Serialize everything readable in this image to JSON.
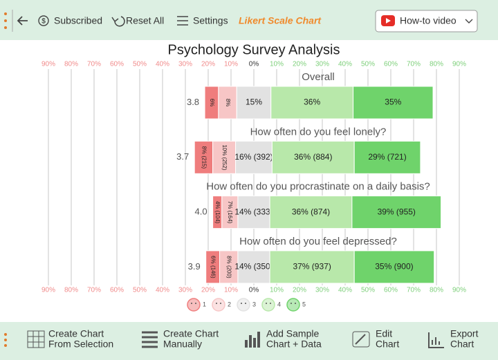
{
  "toolbar": {
    "subscribed": "Subscribed",
    "reset": "Reset All",
    "settings": "Settings",
    "app_title": "Likert Scale Chart",
    "video": "How-to video"
  },
  "bottom_toolbar": {
    "from_selection": [
      "Create Chart",
      "From Selection"
    ],
    "manually": [
      "Create Chart",
      "Manually"
    ],
    "sample": [
      "Add Sample",
      "Chart + Data"
    ],
    "edit": [
      "Edit",
      "Chart"
    ],
    "export": [
      "Export",
      "Chart"
    ]
  },
  "chart_data": {
    "type": "likert",
    "title": "Psychology Survey Analysis",
    "categories": [
      "Overall",
      "How often do you feel lonely?",
      "How often do you procrastinate on a daily basis?",
      "How often do you feel depressed?"
    ],
    "means": [
      3.8,
      3.7,
      4.0,
      3.9
    ],
    "mean_labels": [
      "3.8",
      "3.7",
      "4.0",
      "3.9"
    ],
    "series": [
      {
        "name": "1",
        "color": "#ef7d7d",
        "values": [
          6,
          8,
          4,
          6
        ],
        "value_labels": [
          "6%",
          "8% (215)",
          "4% (104)",
          "6% (146)"
        ]
      },
      {
        "name": "2",
        "color": "#f7c6c6",
        "values": [
          8,
          10,
          7,
          8
        ],
        "value_labels": [
          "8%",
          "10% (252)",
          "7% (164)",
          "8% (200)"
        ]
      },
      {
        "name": "3",
        "color": "#e2e2e2",
        "values": [
          15,
          16,
          14,
          14
        ],
        "value_labels": [
          "15%",
          "16% (392)",
          "14% (333)",
          "14% (350)"
        ]
      },
      {
        "name": "4",
        "color": "#b8e8aa",
        "values": [
          36,
          36,
          36,
          37
        ],
        "value_labels": [
          "36%",
          "36% (884)",
          "36% (874)",
          "37% (937)"
        ]
      },
      {
        "name": "5",
        "color": "#6fd36b",
        "values": [
          35,
          29,
          39,
          35
        ],
        "value_labels": [
          "35%",
          "29% (721)",
          "39% (955)",
          "35% (900)"
        ]
      }
    ],
    "xlim": [
      -90,
      90
    ],
    "xticks": [
      {
        "value": -90,
        "label": "90%"
      },
      {
        "value": -80,
        "label": "80%"
      },
      {
        "value": -70,
        "label": "70%"
      },
      {
        "value": -60,
        "label": "60%"
      },
      {
        "value": -50,
        "label": "50%"
      },
      {
        "value": -40,
        "label": "40%"
      },
      {
        "value": -30,
        "label": "30%"
      },
      {
        "value": -20,
        "label": "20%"
      },
      {
        "value": -10,
        "label": "10%"
      },
      {
        "value": 0,
        "label": "0%"
      },
      {
        "value": 10,
        "label": "10%"
      },
      {
        "value": 20,
        "label": "20%"
      },
      {
        "value": 30,
        "label": "30%"
      },
      {
        "value": 40,
        "label": "40%"
      },
      {
        "value": 50,
        "label": "50%"
      },
      {
        "value": 60,
        "label": "60%"
      },
      {
        "value": 70,
        "label": "70%"
      },
      {
        "value": 80,
        "label": "80%"
      },
      {
        "value": 90,
        "label": "90%"
      }
    ],
    "grid": true
  }
}
